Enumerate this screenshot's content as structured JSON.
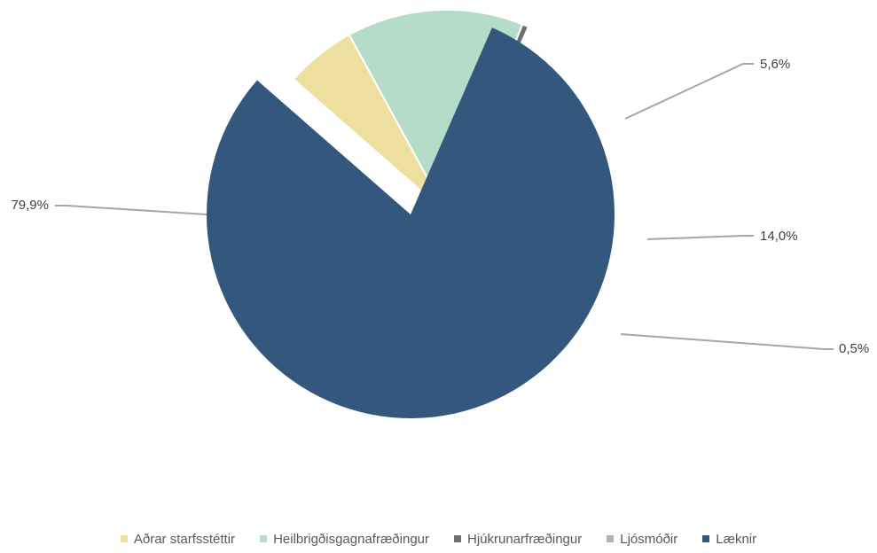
{
  "chart_data": {
    "type": "pie",
    "title": "",
    "categories": [
      "Aðrar starfsstéttir",
      "Heilbrigðisgagnafræðingur",
      "Hjúkrunarfræðingur",
      "Ljósmóðir",
      "Læknir"
    ],
    "values": [
      5.6,
      14.0,
      0.5,
      0.0,
      79.9
    ],
    "labels": [
      "5,6%",
      "14,0%",
      "0,5%",
      "",
      "79,9%"
    ],
    "colors": [
      "#ede09f",
      "#b5dbc9",
      "#6f6f6f",
      "#a9b4bd",
      "#34587d"
    ],
    "exploded": true,
    "legend_position": "bottom",
    "legend": [
      {
        "label": "Aðrar starfsstéttir",
        "color": "#ede09f"
      },
      {
        "label": "Heilbrigðisgagnafræðingur",
        "color": "#b5dbc9"
      },
      {
        "label": "Hjúkrunarfræðingur",
        "color": "#6f6f6f"
      },
      {
        "label": "Ljósmóðir",
        "color": "#a9b4bd"
      },
      {
        "label": "Læknir",
        "color": "#34587d"
      }
    ]
  }
}
